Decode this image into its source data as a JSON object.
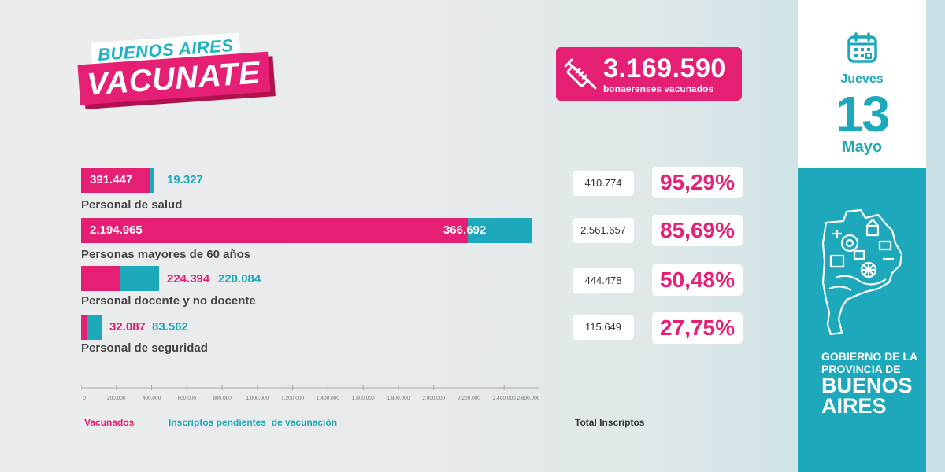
{
  "logo": {
    "line1": "BUENOS AIRES",
    "line2": "VACUNATE"
  },
  "total": {
    "value": "3.169.590",
    "label": "bonaerenses vacunados",
    "icon": "syringe-icon"
  },
  "date": {
    "weekday": "Jueves",
    "day": "13",
    "month": "Mayo",
    "icon": "calendar-icon"
  },
  "government": {
    "line1": "GOBIERNO DE LA",
    "line2": "PROVINCIA DE",
    "line3": "BUENOS",
    "line4": "AIRES",
    "icon": "province-map-icon"
  },
  "colors": {
    "vaccinated": "#e51f74",
    "pending": "#1ea8bc",
    "brand_pink": "#e51f74",
    "brand_teal": "#1ea8bc"
  },
  "chart_data": {
    "type": "bar",
    "orientation": "horizontal",
    "stacked": true,
    "categories": [
      "Personal de salud",
      "Personas mayores de 60 años",
      "Personal docente y no docente",
      "Personal de seguridad"
    ],
    "series": [
      {
        "name": "Vacunados",
        "values": [
          391447,
          2194965,
          224394,
          32087
        ],
        "labels": [
          "391.447",
          "2.194.965",
          "224.394",
          "32.087"
        ]
      },
      {
        "name": "Inscriptos pendientes  de vacunación",
        "values": [
          19327,
          366692,
          220084,
          83562
        ],
        "labels": [
          "19.327",
          "366.692",
          "220.084",
          "83.562"
        ]
      }
    ],
    "totals": {
      "name": "Total Inscriptos",
      "values": [
        410774,
        2561657,
        444478,
        115649
      ],
      "labels": [
        "410.774",
        "2.561.657",
        "444.478",
        "115.649"
      ]
    },
    "percentages": [
      "95,29%",
      "85,69%",
      "50,48%",
      "27,75%"
    ],
    "xlim": [
      0,
      2600000
    ],
    "xticks": [
      "0",
      "200.000",
      "400.000",
      "600.000",
      "800.000",
      "1.000.000",
      "1.200.000",
      "1.400.000",
      "1.600.000",
      "1.800.000",
      "2.000.000",
      "2.200.000",
      "2.400.000",
      "2.600.000"
    ],
    "legend": [
      "Vacunados",
      "Inscriptos pendientes  de vacunación",
      "Total Inscriptos"
    ],
    "legend_position": "bottom",
    "grid": false
  }
}
